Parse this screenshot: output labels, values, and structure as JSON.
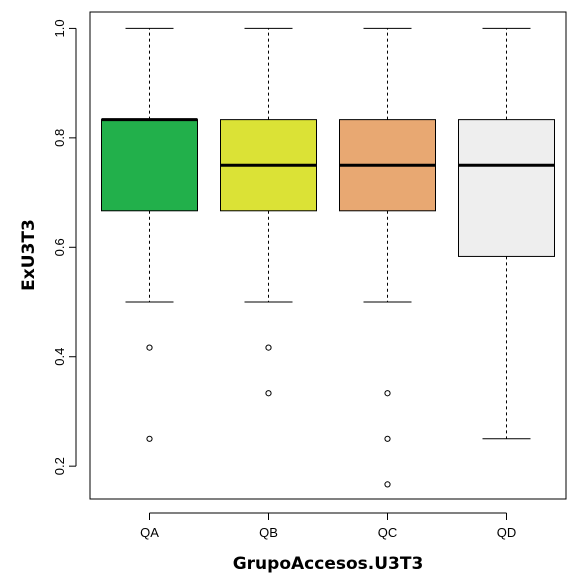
{
  "chart_data": {
    "type": "boxplot",
    "xlabel": "GrupoAccesos.U3T3",
    "ylabel": "ExU3T3",
    "ylim": [
      0.14,
      1.03
    ],
    "yticks": [
      0.2,
      0.4,
      0.6,
      0.8,
      1.0
    ],
    "ytick_labels": [
      "0.2",
      "0.4",
      "0.6",
      "0.8",
      "1.0"
    ],
    "grid": false,
    "categories": [
      "QA",
      "QB",
      "QC",
      "QD"
    ],
    "boxes": [
      {
        "category": "QA",
        "whisker_low": 0.5,
        "q1": 0.6667,
        "median": 0.8333,
        "q3": 0.8333,
        "whisker_high": 1.0,
        "outliers": [
          0.4167,
          0.25
        ],
        "color": "#22b04b"
      },
      {
        "category": "QB",
        "whisker_low": 0.5,
        "q1": 0.6667,
        "median": 0.75,
        "q3": 0.8333,
        "whisker_high": 1.0,
        "outliers": [
          0.4167,
          0.3333
        ],
        "color": "#dbe236"
      },
      {
        "category": "QC",
        "whisker_low": 0.5,
        "q1": 0.6667,
        "median": 0.75,
        "q3": 0.8333,
        "whisker_high": 1.0,
        "outliers": [
          0.3333,
          0.25,
          0.1667
        ],
        "color": "#e8a872"
      },
      {
        "category": "QD",
        "whisker_low": 0.25,
        "q1": 0.5833,
        "median": 0.75,
        "q3": 0.8333,
        "whisker_high": 1.0,
        "outliers": [],
        "color": "#eeeeee"
      }
    ]
  }
}
